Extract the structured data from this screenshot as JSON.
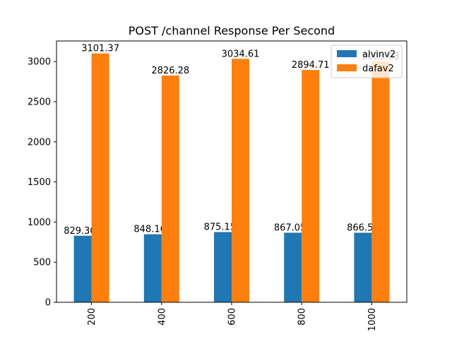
{
  "chart_data": {
    "type": "bar",
    "title": "POST /channel Response Per Second",
    "xlabel": "",
    "ylabel": "",
    "categories": [
      "200",
      "400",
      "600",
      "800",
      "1000"
    ],
    "series": [
      {
        "name": "alvinv2",
        "color": "#1f77b4",
        "values": [
          829.306,
          848.166,
          875.158,
          867.056,
          866.59
        ]
      },
      {
        "name": "dafav2",
        "color": "#ff7f0e",
        "values": [
          3101.37,
          2826.28,
          3034.61,
          2894.71,
          3003.03
        ]
      }
    ],
    "data_labels": [
      [
        "829.306",
        "848.166",
        "875.158",
        "867.056",
        "866.59"
      ],
      [
        "3101.37",
        "2826.28",
        "3034.61",
        "2894.71",
        "3003.03"
      ]
    ],
    "yticks": [
      0,
      500,
      1000,
      1500,
      2000,
      2500,
      3000
    ],
    "ylim": [
      0,
      3257
    ],
    "grid": false,
    "legend_position": "top-right"
  }
}
